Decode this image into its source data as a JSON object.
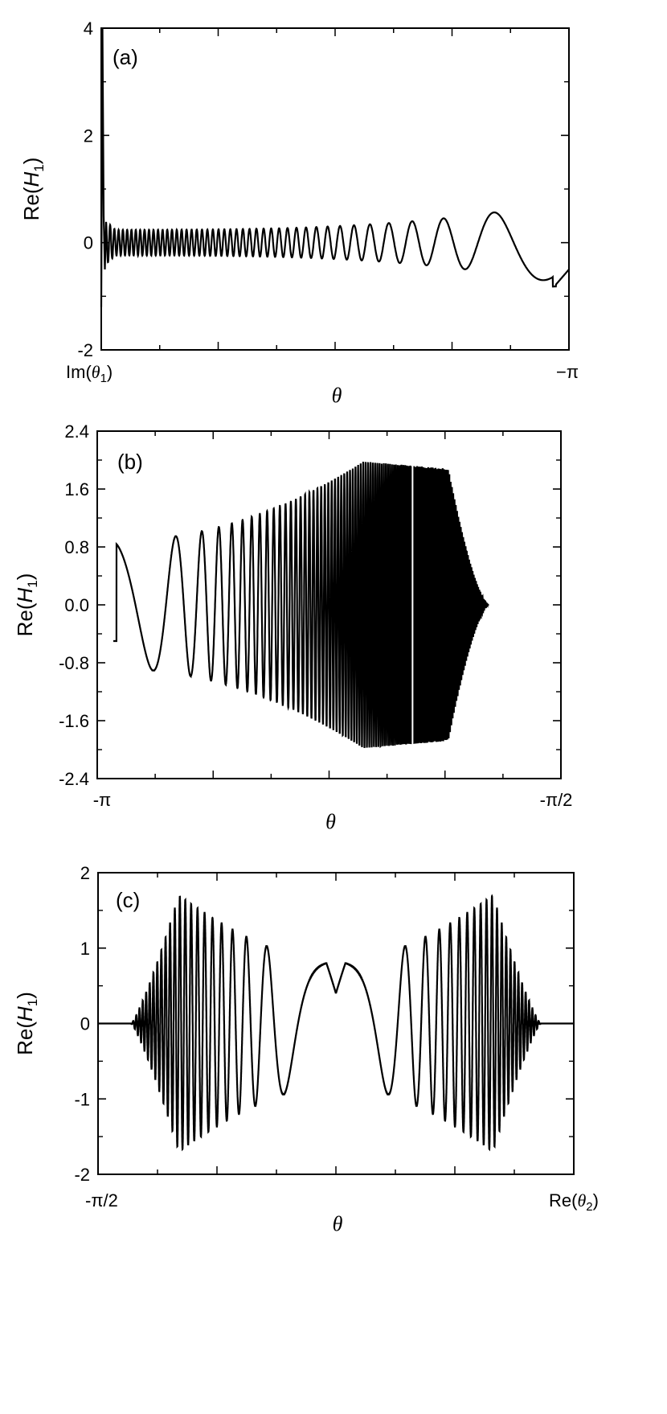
{
  "chart_data": [
    {
      "type": "line",
      "panel_label": "(a)",
      "xlabel": "θ",
      "ylabel_prefix": "Re(",
      "ylabel_var": "H",
      "ylabel_sub": "1",
      "ylabel_suffix": ")",
      "ylim": [
        -2,
        4
      ],
      "yticks": [
        -2,
        0,
        2,
        4
      ],
      "ytick_labels": [
        "-2",
        "0",
        "2",
        "4"
      ],
      "xtick_labels": [
        "Im(θ1)",
        "−π"
      ],
      "xtick_left": {
        "prefix": "Im(",
        "var": "θ",
        "sub": "1",
        "suffix": ")"
      },
      "xtick_right": "−π",
      "series": [
        {
          "description_points": [
            [
              0.0,
              -1.2
            ],
            [
              0.005,
              4.0
            ],
            [
              0.01,
              0.4
            ],
            [
              0.02,
              -0.3
            ],
            [
              0.5,
              0.35
            ],
            [
              0.85,
              0.62
            ],
            [
              0.92,
              0.75
            ],
            [
              0.97,
              -0.85
            ],
            [
              1.0,
              -0.5
            ]
          ]
        }
      ]
    },
    {
      "type": "line",
      "panel_label": "(b)",
      "xlabel": "θ",
      "ylabel_prefix": "Re(",
      "ylabel_var": "H",
      "ylabel_sub": "1",
      "ylabel_suffix": ")",
      "ylim": [
        -2.4,
        2.4
      ],
      "yticks": [
        -2.4,
        -1.6,
        -0.8,
        0.0,
        0.8,
        1.6,
        2.4
      ],
      "ytick_labels": [
        "-2.4",
        "-1.6",
        "-0.8",
        "0.0",
        "0.8",
        "1.6",
        "2.4"
      ],
      "xtick_labels": [
        "-π",
        "-π/2"
      ],
      "series": [
        {
          "description_points": [
            [
              0.03,
              -0.5
            ],
            [
              0.08,
              0.88
            ],
            [
              0.13,
              -0.88
            ],
            [
              0.3,
              0.9
            ],
            [
              0.6,
              1.6
            ],
            [
              0.7,
              2.0
            ],
            [
              0.78,
              1.9
            ],
            [
              0.88,
              0.7
            ],
            [
              0.95,
              0.0
            ]
          ]
        }
      ]
    },
    {
      "type": "line",
      "panel_label": "(c)",
      "xlabel": "θ",
      "ylabel_prefix": "Re(",
      "ylabel_var": "H",
      "ylabel_sub": "1",
      "ylabel_suffix": ")",
      "ylim": [
        -2,
        2
      ],
      "yticks": [
        -2,
        -1,
        0,
        1,
        2
      ],
      "ytick_labels": [
        "-2",
        "-1",
        "0",
        "1",
        "2"
      ],
      "xtick_labels": [
        "-π/2",
        "Re(θ2)"
      ],
      "xtick_right": {
        "prefix": "Re(",
        "var": "θ",
        "sub": "2",
        "suffix": ")"
      },
      "series": [
        {
          "description_points": [
            [
              0.0,
              0.0
            ],
            [
              0.06,
              0.0
            ],
            [
              0.15,
              1.7
            ],
            [
              0.3,
              1.25
            ],
            [
              0.45,
              0.82
            ],
            [
              0.5,
              0.38
            ],
            [
              0.55,
              0.82
            ],
            [
              0.7,
              1.25
            ],
            [
              0.85,
              1.7
            ],
            [
              0.94,
              0.0
            ],
            [
              1.0,
              0.0
            ]
          ]
        }
      ]
    }
  ]
}
